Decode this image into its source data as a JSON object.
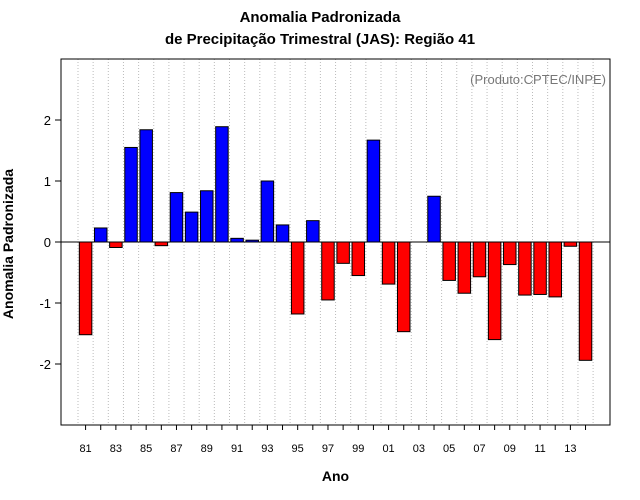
{
  "chart_data": {
    "type": "bar",
    "title": "Anomalia Padronizada",
    "subtitle": "de Precipitação Trimestral (JAS): Região 41",
    "xlabel": "Ano",
    "ylabel": "Anomalia Padronizada",
    "annotation": "(Produto:CPTEC/INPE)",
    "ylim": [
      -3,
      3
    ],
    "yticks": [
      -2,
      -1,
      0,
      1,
      2
    ],
    "grid": "vertical-dotted",
    "colors": {
      "positive": "#0000ff",
      "negative": "#ff0000",
      "grid": "#bbbbbb",
      "annotation": "#777777"
    },
    "categories": [
      "81",
      "82",
      "83",
      "84",
      "85",
      "86",
      "87",
      "88",
      "89",
      "90",
      "91",
      "92",
      "93",
      "94",
      "95",
      "96",
      "97",
      "98",
      "99",
      "00",
      "01",
      "02",
      "03",
      "04",
      "05",
      "06",
      "07",
      "08",
      "09",
      "10",
      "11",
      "12",
      "13",
      "14"
    ],
    "tick_labels": [
      "81",
      "83",
      "85",
      "87",
      "89",
      "91",
      "93",
      "95",
      "97",
      "99",
      "01",
      "03",
      "05",
      "07",
      "09",
      "11",
      "13"
    ],
    "values": [
      -1.52,
      0.23,
      -0.09,
      1.55,
      1.84,
      -0.06,
      0.81,
      0.49,
      0.84,
      1.89,
      0.06,
      0.03,
      1.0,
      0.28,
      -1.18,
      0.35,
      -0.95,
      -0.35,
      -0.55,
      1.67,
      -0.69,
      -1.47,
      0.0,
      0.75,
      -0.63,
      -0.84,
      -0.57,
      -1.6,
      -0.37,
      -0.87,
      -0.86,
      -0.9,
      -0.07,
      -1.94
    ]
  }
}
